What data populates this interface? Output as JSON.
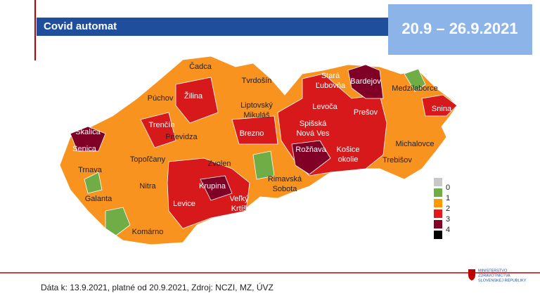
{
  "header": {
    "title": "Covid automat",
    "period": "20.9 – 26.9.2021"
  },
  "districts": [
    {
      "lines": [
        "Čadca"
      ]
    },
    {
      "lines": [
        "Tvrdošín"
      ]
    },
    {
      "lines": [
        "Stará",
        "Ľubovňa"
      ]
    },
    {
      "lines": [
        "Bardejov"
      ]
    },
    {
      "lines": [
        "Medzilaborce"
      ]
    },
    {
      "lines": [
        "Púchov"
      ]
    },
    {
      "lines": [
        "Žilina"
      ]
    },
    {
      "lines": [
        "Liptovský",
        "Mikuláš"
      ]
    },
    {
      "lines": [
        "Levoča"
      ]
    },
    {
      "lines": [
        "Prešov"
      ]
    },
    {
      "lines": [
        "Snina"
      ]
    },
    {
      "lines": [
        "Skalica"
      ]
    },
    {
      "lines": [
        "Trenčín"
      ]
    },
    {
      "lines": [
        "Prievidza"
      ]
    },
    {
      "lines": [
        "Brezno"
      ]
    },
    {
      "lines": [
        "Spišská",
        "Nová Ves"
      ]
    },
    {
      "lines": [
        "Michalovce"
      ]
    },
    {
      "lines": [
        "Senica"
      ]
    },
    {
      "lines": [
        "Rožňava"
      ]
    },
    {
      "lines": [
        "Košice",
        "okolie"
      ]
    },
    {
      "lines": [
        "Topoľčany"
      ]
    },
    {
      "lines": [
        "Trnava"
      ]
    },
    {
      "lines": [
        "Zvolen"
      ]
    },
    {
      "lines": [
        "Rimavská",
        "Sobota"
      ]
    },
    {
      "lines": [
        "Trebišov"
      ]
    },
    {
      "lines": [
        "Nitra"
      ]
    },
    {
      "lines": [
        "Galanta"
      ]
    },
    {
      "lines": [
        "Krupina"
      ]
    },
    {
      "lines": [
        "Veľký",
        "Krtíš"
      ]
    },
    {
      "lines": [
        "Levice"
      ]
    },
    {
      "lines": [
        "Komárno"
      ]
    }
  ],
  "legend": [
    {
      "level": 0,
      "color": "#70ad47"
    },
    {
      "level": 1,
      "color": "#ff9900"
    },
    {
      "level": 2,
      "color": "#e31a1c"
    },
    {
      "level": 3,
      "color": "#800026"
    },
    {
      "level": 4,
      "color": "#000000"
    }
  ],
  "footer": "Dáta k: 13.9.2021, platné od 20.9.2021, Zdroj: NCZI, MZ, ÚVZ",
  "logo": [
    "MINISTERSTVO",
    "ZDRAVOTNÍCTVA",
    "SLOVENSKEJ REPUBLIKY"
  ]
}
